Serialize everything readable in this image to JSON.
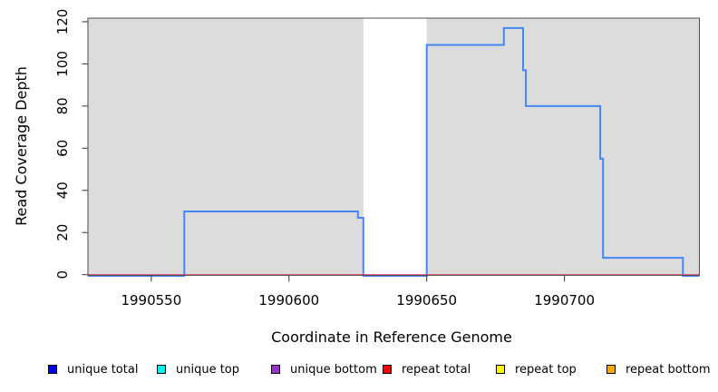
{
  "chart_data": {
    "type": "line",
    "subtype": "step-coverage",
    "title": "",
    "xlabel": "Coordinate in Reference Genome",
    "ylabel": "Read Coverage Depth",
    "xlim": [
      1990527,
      1990749
    ],
    "ylim": [
      0,
      121.7
    ],
    "x_ticks": [
      1990550,
      1990600,
      1990650,
      1990700
    ],
    "y_ticks": [
      0,
      20,
      40,
      60,
      80,
      100,
      120
    ],
    "grid": false,
    "plot_bg_color": "#dcdcdc",
    "outer_bg_color": "#ffffff",
    "box_color": "#4d4d4d",
    "masked_region": {
      "x1": 1990627,
      "x2": 1990650,
      "color": "#ffffff"
    },
    "series": [
      {
        "name": "unique total",
        "color": "#4486f4",
        "width": 2,
        "opacity": 1,
        "points": [
          [
            1990527,
            0
          ],
          [
            1990562,
            0
          ],
          [
            1990562,
            30
          ],
          [
            1990625,
            30
          ],
          [
            1990625,
            27
          ],
          [
            1990627,
            27
          ],
          [
            1990627,
            0
          ],
          [
            1990650,
            0
          ],
          [
            1990650,
            109
          ],
          [
            1990678,
            109
          ],
          [
            1990678,
            117
          ],
          [
            1990685,
            117
          ],
          [
            1990685,
            97
          ],
          [
            1990686,
            97
          ],
          [
            1990686,
            80
          ],
          [
            1990713,
            80
          ],
          [
            1990713,
            55
          ],
          [
            1990714,
            55
          ],
          [
            1990714,
            8
          ],
          [
            1990743,
            8
          ],
          [
            1990743,
            0
          ],
          [
            1990749,
            0
          ]
        ]
      },
      {
        "name": "repeat total",
        "color": "#ee3a5f",
        "width": 1.5,
        "opacity": 0.78,
        "points": [
          [
            1990527,
            0
          ],
          [
            1990749,
            0
          ]
        ]
      }
    ],
    "legend": {
      "position": "bottom",
      "items": [
        {
          "label": "unique total",
          "color": "#0000e0"
        },
        {
          "label": "unique top",
          "color": "#00eeee"
        },
        {
          "label": "unique bottom",
          "color": "#9932cc"
        },
        {
          "label": "repeat total",
          "color": "#ff0000"
        },
        {
          "label": "repeat top",
          "color": "#ffff00"
        },
        {
          "label": "repeat bottom",
          "color": "#ffa500"
        }
      ]
    }
  }
}
